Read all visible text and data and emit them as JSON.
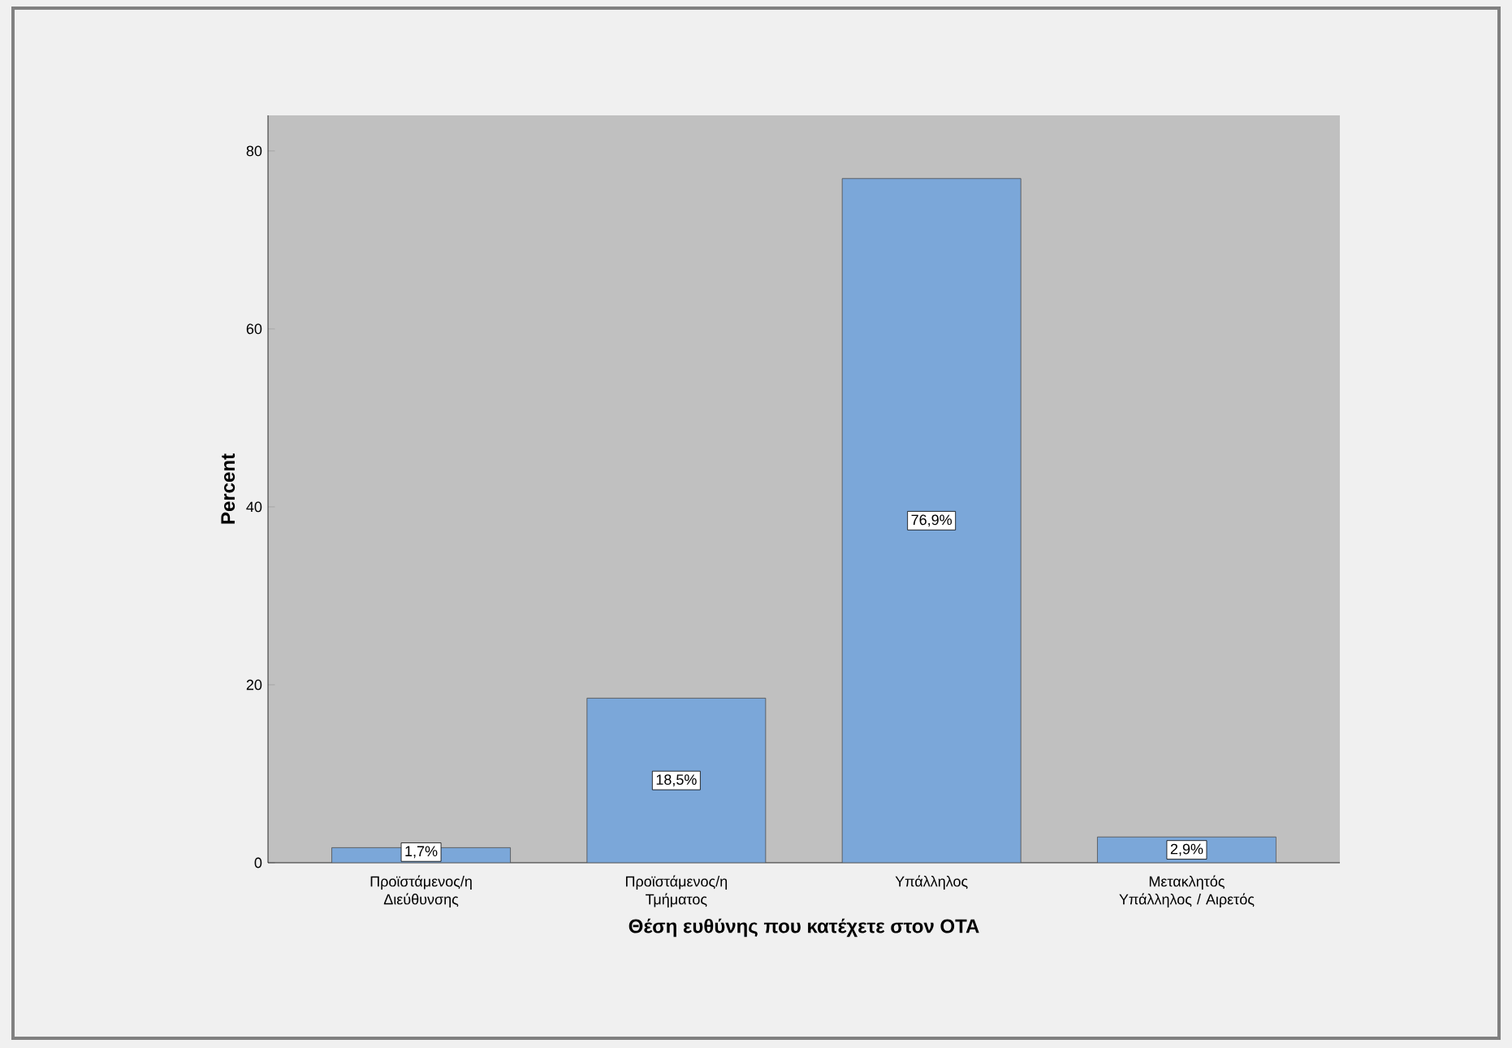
{
  "chart_data": {
    "type": "bar",
    "xlabel": "Θέση ευθύνης που κατέχετε στον ΟΤΑ",
    "ylabel": "Percent",
    "categories": [
      "Προϊστάμενος/η Διεύθυνσης",
      "Προϊστάμενος/η Τμήματος",
      "Υπάλληλος",
      "Μετακλητός Υπάλληλος / Αιρετός"
    ],
    "values": [
      1.7,
      18.5,
      76.9,
      2.9
    ],
    "value_labels": [
      "1,7%",
      "18,5%",
      "76,9%",
      "2,9%"
    ],
    "color": "#7ba7d9",
    "ylim": [
      0,
      84
    ],
    "yticks": [
      0,
      20,
      40,
      60,
      80
    ]
  }
}
